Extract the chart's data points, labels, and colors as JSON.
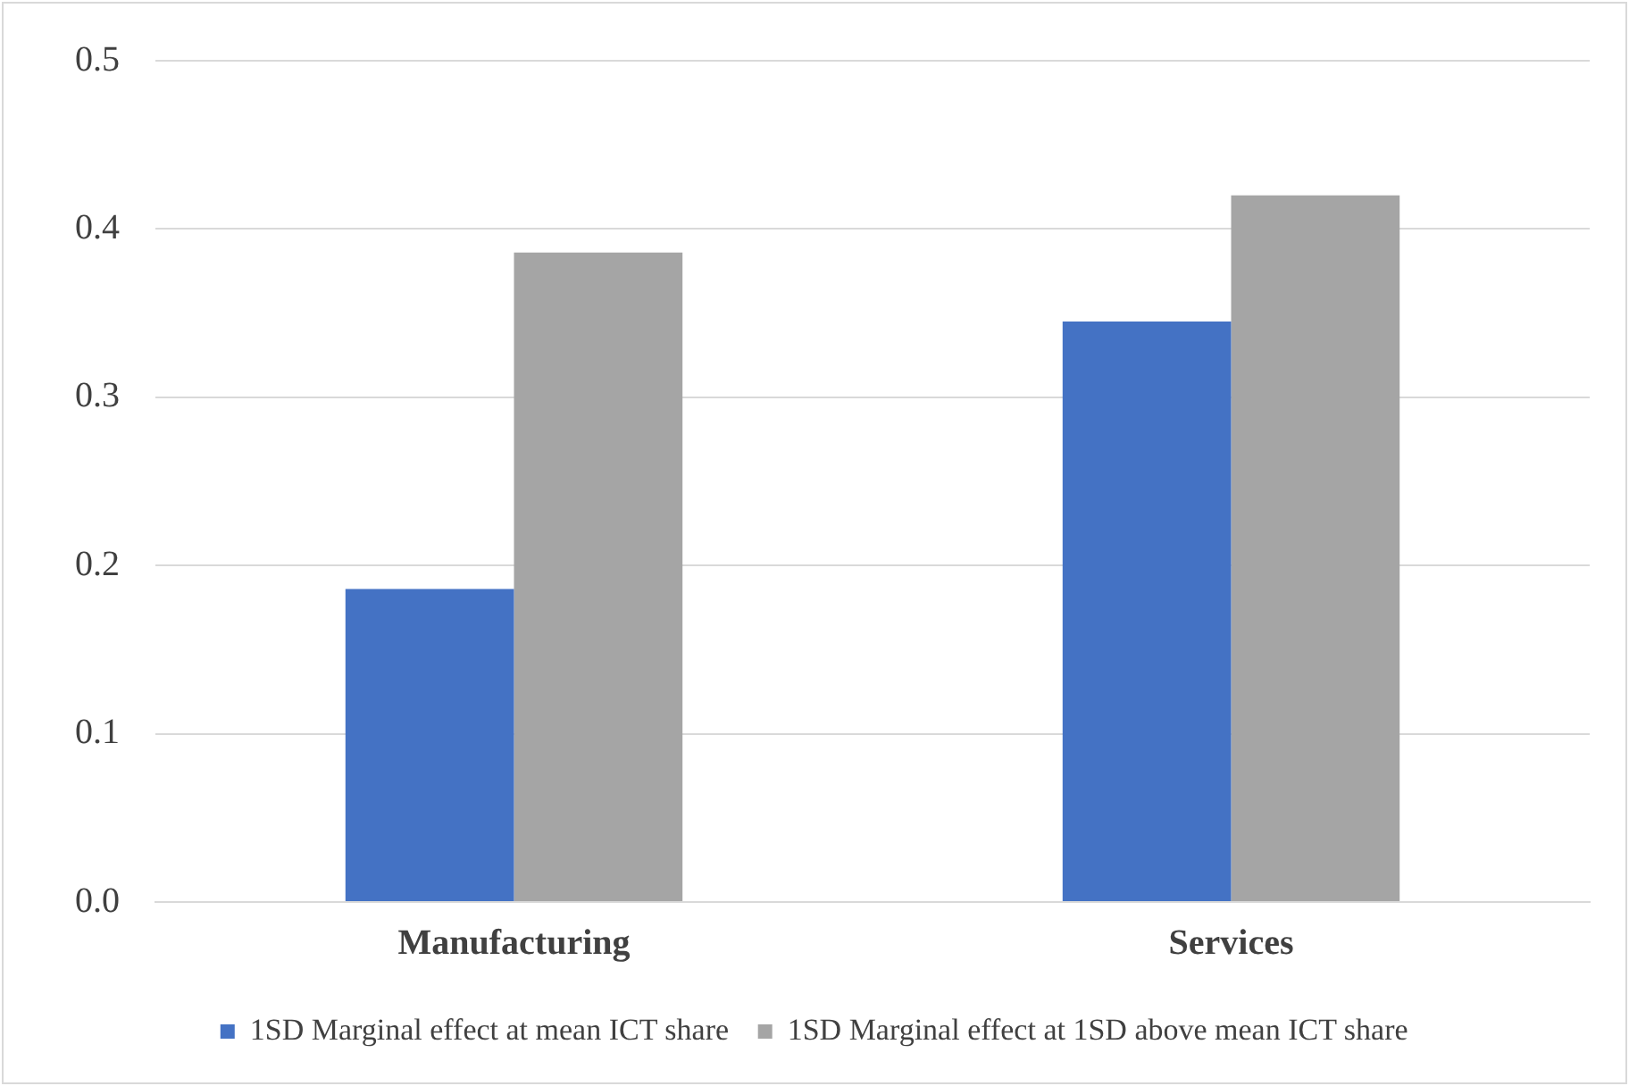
{
  "chart_data": {
    "type": "bar",
    "categories": [
      "Manufacturing",
      "Services"
    ],
    "series": [
      {
        "name": "1SD Marginal effect at mean ICT share",
        "color": "#4472c4",
        "values": [
          0.186,
          0.345
        ]
      },
      {
        "name": "1SD Marginal effect at 1SD above mean ICT share",
        "color": "#a5a5a5",
        "values": [
          0.386,
          0.42
        ]
      }
    ],
    "ylim": [
      0,
      0.5
    ],
    "yticks": [
      {
        "value": 0,
        "label": "0.0"
      },
      {
        "value": 0.1,
        "label": "0.1"
      },
      {
        "value": 0.2,
        "label": "0.2"
      },
      {
        "value": 0.3,
        "label": "0.3"
      },
      {
        "value": 0.4,
        "label": "0.4"
      },
      {
        "value": 0.5,
        "label": "0.5"
      }
    ],
    "grid": "y",
    "legend": "bottom"
  }
}
